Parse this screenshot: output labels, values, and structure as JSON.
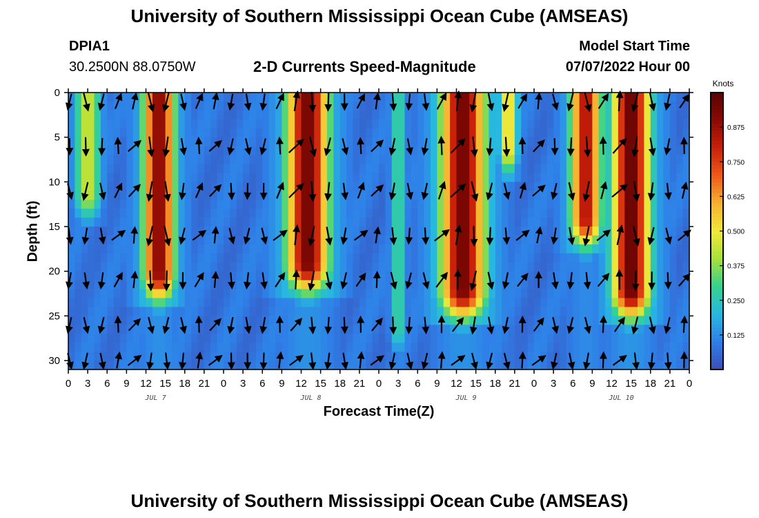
{
  "header": {
    "title_top": "University of Southern Mississippi Ocean Cube (AMSEAS)",
    "station_id": "DPIA1",
    "station_coords": "30.2500N  88.0750W",
    "chart_subtitle": "2-D Currents Speed-Magnitude",
    "model_start_label": "Model Start Time",
    "model_start_value": "07/07/2022 Hour 00",
    "title_bottom": "University of Southern Mississippi Ocean Cube (AMSEAS)"
  },
  "colors": {
    "stops": [
      "#3a4fb8",
      "#2f7fe8",
      "#27b8e0",
      "#36d28f",
      "#a7e03a",
      "#f2e83a",
      "#f7b030",
      "#ee5a18",
      "#c8200a",
      "#8a0a04",
      "#5a0202"
    ]
  },
  "chart_data": {
    "type": "heatmap",
    "title": "2-D Currents Speed-Magnitude",
    "xlabel": "Forecast Time(Z)",
    "ylabel": "Depth (ft)",
    "x_range_hours": [
      0,
      96
    ],
    "y_range_ft": [
      0,
      31
    ],
    "x_ticks": [
      "0",
      "3",
      "6",
      "9",
      "12",
      "15",
      "18",
      "21",
      "0",
      "3",
      "6",
      "9",
      "12",
      "15",
      "18",
      "21",
      "0",
      "3",
      "6",
      "9",
      "12",
      "15",
      "18",
      "21",
      "0",
      "3",
      "6",
      "9",
      "12",
      "15",
      "18",
      "21",
      "0"
    ],
    "y_ticks": [
      "0",
      "5",
      "10",
      "15",
      "20",
      "25",
      "30"
    ],
    "day_labels": [
      "JUL 7",
      "JUL 8",
      "JUL 9",
      "JUL 10"
    ],
    "colorbar": {
      "unit": "Knots",
      "range": [
        0,
        1.0
      ],
      "ticks": [
        "0.125",
        "0.250",
        "0.375",
        "0.500",
        "0.625",
        "0.750",
        "0.875"
      ]
    },
    "speed_peaks": [
      {
        "center_hour": 3,
        "width_hours": 2.2,
        "amp": 0.45,
        "max_depth_ft": 11
      },
      {
        "center_hour": 14,
        "width_hours": 2.5,
        "amp": 0.92,
        "max_depth_ft": 20
      },
      {
        "center_hour": 37,
        "width_hours": 3.4,
        "amp": 0.95,
        "max_depth_ft": 19
      },
      {
        "center_hour": 51,
        "width_hours": 1.4,
        "amp": 0.3,
        "max_depth_ft": 26
      },
      {
        "center_hour": 61,
        "width_hours": 3.6,
        "amp": 0.95,
        "max_depth_ft": 22
      },
      {
        "center_hour": 68,
        "width_hours": 1.5,
        "amp": 0.55,
        "max_depth_ft": 6
      },
      {
        "center_hour": 80,
        "width_hours": 2.5,
        "amp": 0.85,
        "max_depth_ft": 14
      },
      {
        "center_hour": 87,
        "width_hours": 3.0,
        "amp": 0.98,
        "max_depth_ft": 22
      }
    ],
    "vector_rows_ft": [
      1,
      6,
      11,
      16,
      21,
      26,
      30
    ],
    "vector_columns_hour_step": 2.5
  }
}
